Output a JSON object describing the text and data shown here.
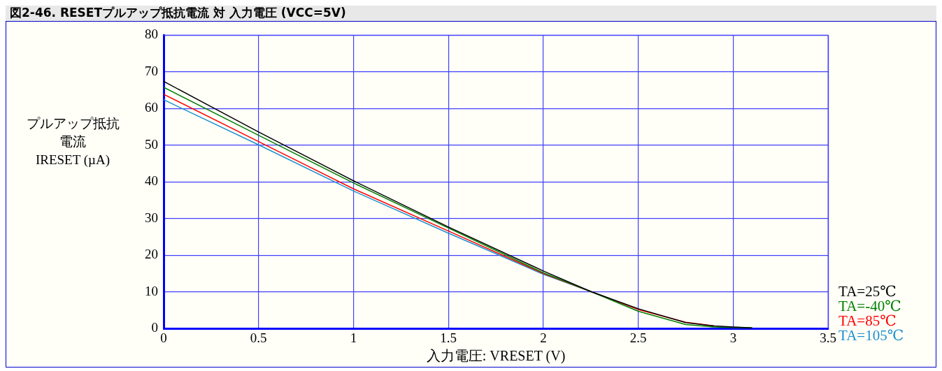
{
  "chart_data": {
    "type": "line",
    "title": "図2-46. RESETプルアップ抵抗電流 対 入力電圧 (VCC=5V)",
    "xlabel": "入力電圧: VRESET (V)",
    "ylabel": "プルアップ抵抗電流\nIRESET (µA)",
    "x": [
      0,
      0.5,
      1,
      1.5,
      2,
      2.25,
      2.5,
      2.75,
      2.9,
      3,
      3.1
    ],
    "series": [
      {
        "name": "TA=25℃",
        "color": "#000000",
        "values": [
          67.4,
          53.6,
          40.3,
          27.7,
          15.7,
          10.1,
          5.4,
          1.6,
          0.7,
          0.4,
          0.2
        ]
      },
      {
        "name": "TA=-40℃",
        "color": "#008000",
        "values": [
          65.8,
          52.7,
          39.7,
          27.4,
          15.2,
          10.1,
          4.7,
          1.1,
          0.4,
          0.3,
          0.2
        ]
      },
      {
        "name": "TA=85℃",
        "color": "#ff0000",
        "values": [
          63.9,
          51,
          38.1,
          26.6,
          15,
          10.1,
          5.2,
          1.7,
          0.7,
          null,
          null
        ]
      },
      {
        "name": "TA=105℃",
        "color": "#1f8fcf",
        "values": [
          62.4,
          50.1,
          37.5,
          26,
          14.8,
          10.1,
          5.2,
          null,
          null,
          null,
          null
        ]
      }
    ],
    "xlim": [
      0,
      3.5
    ],
    "xticks": [
      0,
      0.5,
      1,
      1.5,
      2,
      2.5,
      3,
      3.5
    ],
    "ylim": [
      0,
      80
    ],
    "yticks": [
      0,
      10,
      20,
      30,
      40,
      50,
      60,
      70,
      80
    ],
    "grid": true,
    "legend": "right",
    "marker": "none",
    "line_style": "solid"
  }
}
